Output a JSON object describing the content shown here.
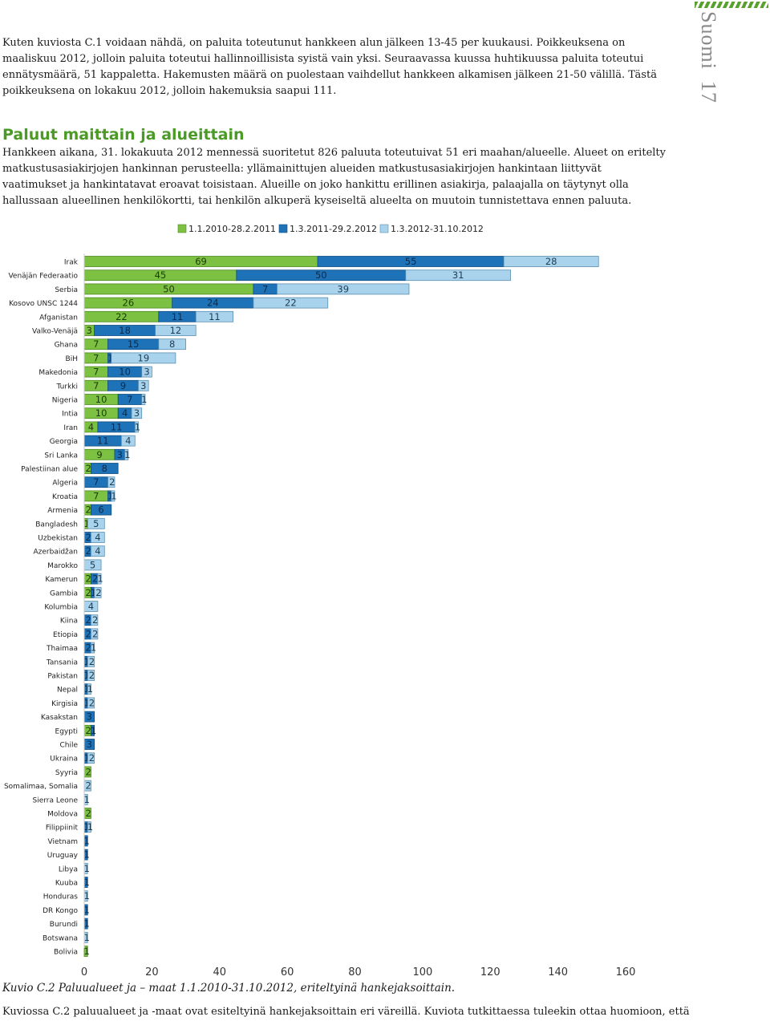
{
  "header": {
    "running_title": "Suomi",
    "page_number": "17"
  },
  "intro_paragraph": "Kuten kuviosta C.1 voidaan nähdä, on paluita toteutunut hankkeen alun jälkeen 13-45 per kuukausi. Poikkeuksena on maaliskuu 2012, jolloin paluita toteutui hallinnoillisista syistä vain yksi. Seuraavassa kuussa huhtikuussa paluita toteutui ennätysmäärä, 51 kappaletta. Hakemusten määrä on puolestaan vaihdellut hankkeen alkamisen jälkeen 21-50 välillä. Tästä poikkeuksena on lokakuu 2012, jolloin hakemuksia saapui 111.",
  "section": {
    "title": "Paluut maittain ja alueittain",
    "body": "Hankkeen aikana, 31. lokakuuta 2012 mennessä suoritetut 826 paluuta toteutuivat 51 eri maahan/alueelle. Alueet on eritelty matkustusasiakirjojen hankinnan perusteella: yllämainittujen alueiden matkustusasiakirjojen hankintaan liittyvät vaatimukset ja hankintatavat eroavat toisistaan. Alueille on joko hankittu erillinen asiakirja, palaajalla on täytynyt olla hallussaan alueellinen henkilökortti, tai henkilön alkuperä kyseiseltä alueelta on muutoin tunnistettava ennen paluuta."
  },
  "chart_data": {
    "type": "bar",
    "orientation": "horizontal",
    "stacked": true,
    "title": "",
    "xlabel": "",
    "ylabel": "",
    "xlim": [
      0,
      160
    ],
    "x_ticks": [
      0,
      20,
      40,
      60,
      80,
      100,
      120,
      140,
      160
    ],
    "grid": false,
    "legend_position": "top",
    "categories": [
      "Irak",
      "Venäjän Federaatio",
      "Serbia",
      "Kosovo UNSC 1244",
      "Afganistan",
      "Valko-Venäjä",
      "Ghana",
      "BiH",
      "Makedonia",
      "Turkki",
      "Nigeria",
      "Intia",
      "Iran",
      "Georgia",
      "Sri Lanka",
      "Palestiinan alue",
      "Algeria",
      "Kroatia",
      "Armenia",
      "Bangladesh",
      "Uzbekistan",
      "Azerbaidžan",
      "Marokko",
      "Kamerun",
      "Gambia",
      "Kolumbia",
      "Kiina",
      "Etiopia",
      "Thaimaa",
      "Tansania",
      "Pakistan",
      "Nepal",
      "Kirgisia",
      "Kasakstan",
      "Egypti",
      "Chile",
      "Ukraina",
      "Syyria",
      "Somalimaa, Somalia",
      "Sierra Leone",
      "Moldova",
      "Filippiinit",
      "Vietnam",
      "Uruguay",
      "Libya",
      "Kuuba",
      "Honduras",
      "DR Kongo",
      "Burundi",
      "Botswana",
      "Bolivia"
    ],
    "series": [
      {
        "name": "1.1.2010-28.2.2011",
        "color": "#7cc142",
        "border": "#4d8a1f",
        "values": [
          69,
          45,
          50,
          26,
          22,
          3,
          7,
          7,
          7,
          7,
          10,
          10,
          4,
          0,
          9,
          2,
          0,
          7,
          2,
          1,
          0,
          0,
          0,
          2,
          2,
          0,
          0,
          0,
          0,
          0,
          0,
          0,
          0,
          0,
          2,
          0,
          0,
          2,
          0,
          0,
          2,
          0,
          0,
          0,
          0,
          0,
          0,
          0,
          0,
          0,
          1
        ]
      },
      {
        "name": "1.3.2011-29.2.2012",
        "color": "#1e73b8",
        "border": "#0f4d82",
        "values": [
          55,
          50,
          7,
          24,
          11,
          18,
          15,
          1,
          10,
          9,
          7,
          4,
          11,
          11,
          3,
          8,
          7,
          1,
          6,
          0,
          2,
          2,
          0,
          2,
          1,
          0,
          2,
          2,
          2,
          1,
          1,
          1,
          1,
          3,
          1,
          3,
          1,
          0,
          0,
          0,
          0,
          1,
          1,
          1,
          0,
          1,
          0,
          1,
          1,
          0,
          0
        ]
      },
      {
        "name": "1.3.2012-31.10.2012",
        "color": "#a9d3ec",
        "border": "#5b8fb0",
        "values": [
          28,
          31,
          39,
          22,
          11,
          12,
          8,
          19,
          3,
          3,
          1,
          3,
          1,
          4,
          1,
          0,
          2,
          1,
          0,
          5,
          4,
          4,
          5,
          1,
          2,
          4,
          2,
          2,
          1,
          2,
          2,
          1,
          2,
          0,
          0,
          0,
          2,
          0,
          2,
          1,
          0,
          1,
          0,
          0,
          1,
          0,
          1,
          0,
          0,
          1,
          0
        ]
      }
    ]
  },
  "figure": {
    "caption": "Kuvio C.2 Paluualueet ja – maat 1.1.2010-31.10.2012, eriteltyinä hankejaksoittain.",
    "following_text": "Kuviossa C.2 paluualueet ja -maat ovat esiteltyinä hankejaksoittain eri väreillä. Kuviota tutkittaessa tuleekin ottaa huomioon, että"
  }
}
